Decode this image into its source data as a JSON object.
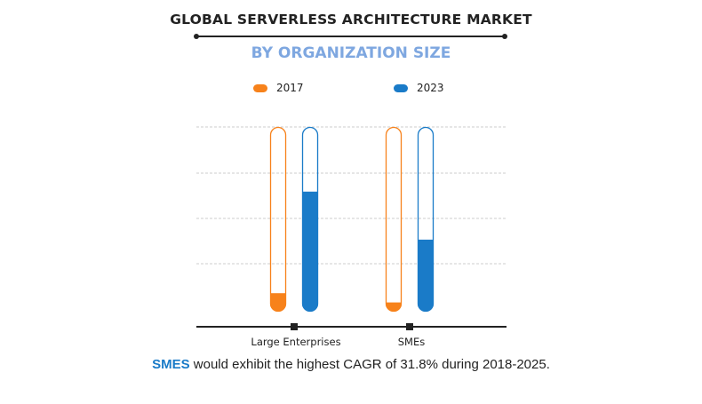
{
  "title": "GLOBAL SERVERLESS ARCHITECTURE MARKET",
  "subtitle": "BY ORGANIZATION SIZE",
  "footer": {
    "highlight": "SMES",
    "text": " would exhibit the highest CAGR of 31.8% during 2018-2025."
  },
  "colors": {
    "2017": "#f7821b",
    "2023": "#1a7bc8",
    "title": "#222222",
    "subtitle": "#7ea7e0"
  },
  "chart_data": {
    "type": "bar",
    "categories": [
      "Large Enterprises",
      "SMEs"
    ],
    "series": [
      {
        "name": "2017",
        "values": [
          0.1,
          0.05
        ]
      },
      {
        "name": "2023",
        "values": [
          0.65,
          0.39
        ]
      }
    ],
    "value_unit": "fraction of tube filled (no axis values printed)",
    "ylim": [
      0,
      1
    ],
    "grid": true,
    "legend": "top"
  }
}
